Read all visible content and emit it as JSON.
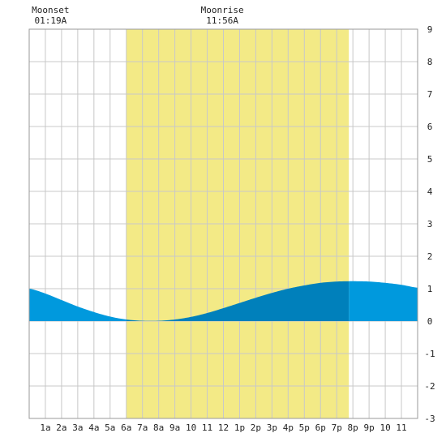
{
  "chart_data": {
    "type": "area",
    "title": "",
    "xlabel": "",
    "ylabel": "",
    "x_range_hours": [
      0,
      24
    ],
    "ylim": [
      -3,
      9
    ],
    "y_ticks": [
      "-3",
      "-2",
      "-1",
      "0",
      "1",
      "2",
      "3",
      "4",
      "5",
      "6",
      "7",
      "8",
      "9"
    ],
    "x_tick_labels": [
      "1a",
      "2a",
      "3a",
      "4a",
      "5a",
      "6a",
      "7a",
      "8a",
      "9a",
      "10",
      "11",
      "12",
      "1p",
      "2p",
      "3p",
      "4p",
      "5p",
      "6p",
      "7p",
      "8p",
      "9p",
      "10",
      "11"
    ],
    "grid": true,
    "daylight_hours": [
      6.0,
      19.75
    ],
    "annotations": [
      {
        "label": "Moonset",
        "time": "01:19A",
        "hour": 1.32
      },
      {
        "label": "Moonrise",
        "time": "11:56A",
        "hour": 11.93
      }
    ],
    "tide_curve": {
      "hours": [
        0,
        1,
        2,
        3,
        4,
        5,
        6,
        7,
        8,
        9,
        10,
        11,
        12,
        13,
        14,
        15,
        16,
        17,
        18,
        19,
        20,
        21,
        22,
        23,
        24
      ],
      "heights_ft": [
        1.0,
        0.85,
        0.65,
        0.45,
        0.28,
        0.14,
        0.05,
        0.01,
        0.01,
        0.05,
        0.13,
        0.25,
        0.4,
        0.56,
        0.72,
        0.87,
        1.0,
        1.1,
        1.18,
        1.22,
        1.23,
        1.22,
        1.18,
        1.12,
        1.03
      ]
    },
    "colors": {
      "daylight": "#f3ea86",
      "tide_night": "#0099dd",
      "tide_day": "#0080bb",
      "grid": "#c8c8c8",
      "text": "#222222"
    }
  }
}
